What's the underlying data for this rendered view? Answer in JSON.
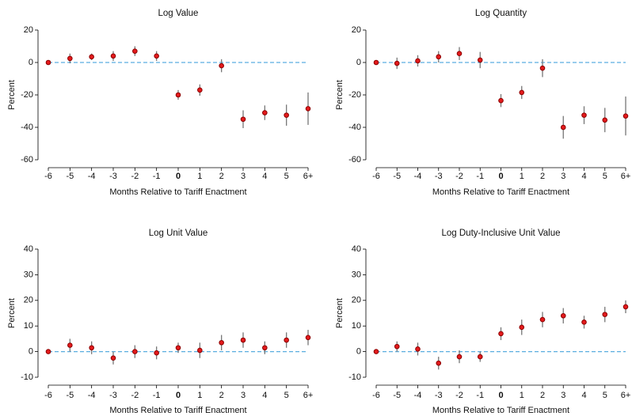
{
  "chart_data": [
    {
      "type": "errorbar",
      "title": "Log Value",
      "xlabel": "Months Relative to Tariff Enactment",
      "ylabel": "Percent",
      "categories": [
        "-6",
        "-5",
        "-4",
        "-3",
        "-2",
        "-1",
        "0",
        "1",
        "2",
        "3",
        "4",
        "5",
        "6+"
      ],
      "values": [
        0,
        2.5,
        3.5,
        4,
        7,
        4,
        -20,
        -17,
        -2,
        -35,
        -31,
        -32.5,
        -28.5
      ],
      "errors": [
        0,
        3,
        2,
        3,
        3,
        3,
        3,
        3.5,
        4,
        5.5,
        4.5,
        6.5,
        10
      ],
      "color": "#e41a1c",
      "error_color": "#777777",
      "hline": 0,
      "hline_color": "#5aaee0",
      "ylim": [
        -60,
        20
      ],
      "yticks": [
        -60,
        -40,
        -20,
        0,
        20
      ]
    },
    {
      "type": "errorbar",
      "title": "Log Quantity",
      "xlabel": "Months Relative to Tariff Enactment",
      "ylabel": "Percent",
      "categories": [
        "-6",
        "-5",
        "-4",
        "-3",
        "-2",
        "-1",
        "0",
        "1",
        "2",
        "3",
        "4",
        "5",
        "6+"
      ],
      "values": [
        0,
        -0.5,
        1,
        3.5,
        5.5,
        1.5,
        -23.5,
        -18.5,
        -3.5,
        -40,
        -32.5,
        -35.5,
        -33
      ],
      "errors": [
        0,
        3.5,
        3.5,
        3.5,
        4,
        5,
        4,
        4,
        5.5,
        7,
        5.5,
        7.5,
        12
      ],
      "color": "#e41a1c",
      "error_color": "#777777",
      "hline": 0,
      "hline_color": "#5aaee0",
      "ylim": [
        -60,
        20
      ],
      "yticks": [
        -60,
        -40,
        -20,
        0,
        20
      ]
    },
    {
      "type": "errorbar",
      "title": "Log Unit Value",
      "xlabel": "Months Relative to Tariff Enactment",
      "ylabel": "Percent",
      "categories": [
        "-6",
        "-5",
        "-4",
        "-3",
        "-2",
        "-1",
        "0",
        "1",
        "2",
        "3",
        "4",
        "5",
        "6+"
      ],
      "values": [
        0,
        2.5,
        1.5,
        -2.5,
        0,
        -0.5,
        1.5,
        0.5,
        3.5,
        4.5,
        1.5,
        4.5,
        5.5
      ],
      "errors": [
        0,
        2.5,
        2.5,
        2.5,
        2.5,
        2.5,
        2,
        3,
        3,
        3,
        2.5,
        3,
        3
      ],
      "color": "#e41a1c",
      "error_color": "#777777",
      "hline": 0,
      "hline_color": "#5aaee0",
      "ylim": [
        -10,
        40
      ],
      "yticks": [
        -10,
        0,
        10,
        20,
        30,
        40
      ]
    },
    {
      "type": "errorbar",
      "title": "Log Duty-Inclusive Unit Value",
      "xlabel": "Months Relative to Tariff Enactment",
      "ylabel": "Percent",
      "categories": [
        "-6",
        "-5",
        "-4",
        "-3",
        "-2",
        "-1",
        "0",
        "1",
        "2",
        "3",
        "4",
        "5",
        "6+"
      ],
      "values": [
        0,
        2,
        1,
        -4.5,
        -2,
        -2,
        7,
        9.5,
        12.5,
        14,
        11.5,
        14.5,
        17.5
      ],
      "errors": [
        0,
        2,
        2.5,
        2.5,
        2.5,
        2,
        2.5,
        3,
        3,
        3,
        2.5,
        3,
        2.5
      ],
      "color": "#e41a1c",
      "error_color": "#777777",
      "hline": 0,
      "hline_color": "#5aaee0",
      "ylim": [
        -10,
        40
      ],
      "yticks": [
        -10,
        0,
        10,
        20,
        30,
        40
      ]
    }
  ]
}
